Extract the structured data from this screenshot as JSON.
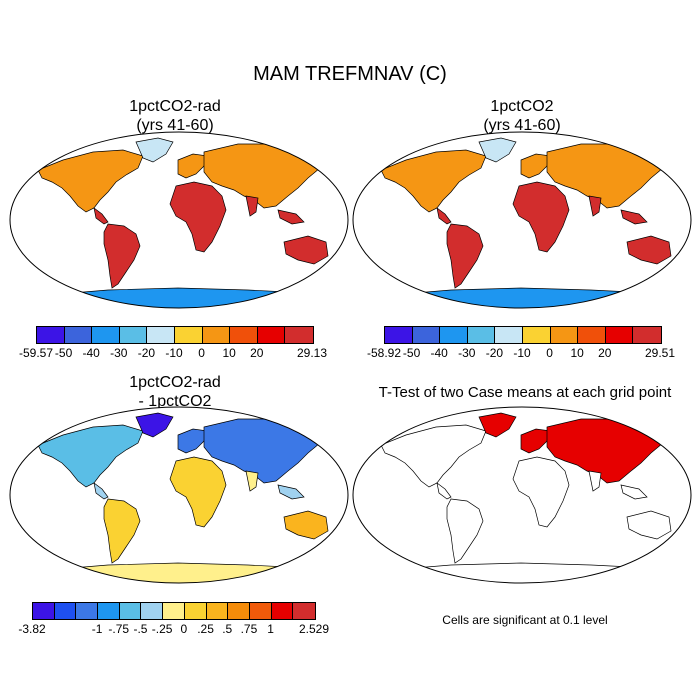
{
  "figure": {
    "title": "MAM TREFMNAV (C)"
  },
  "panels": [
    {
      "title_line1": "1pctCO2-rad",
      "title_line2": "(yrs 41-60)",
      "colorbar_labels": [
        "-59.57",
        "-50",
        "-40",
        "-30",
        "-20",
        "-10",
        "0",
        "10",
        "20",
        "29.13"
      ]
    },
    {
      "title_line1": "1pctCO2",
      "title_line2": "(yrs 41-60)",
      "colorbar_labels": [
        "-58.92",
        "-50",
        "-40",
        "-30",
        "-20",
        "-10",
        "0",
        "10",
        "20",
        "29.51"
      ]
    },
    {
      "title_line1": "1pctCO2-rad",
      "title_line2": "- 1pctCO2",
      "colorbar_labels": [
        "-3.82",
        "-1",
        "-.75",
        "-.5",
        "-.25",
        "0",
        ".25",
        ".5",
        ".75",
        "1",
        "2.529"
      ]
    },
    {
      "title_line1": "T-Test of two Case means at each grid point",
      "note": "Cells are significant at 0.1 level"
    }
  ],
  "colors": {
    "abs_scale": [
      "#3c14e6",
      "#3c64dc",
      "#1e96f0",
      "#5abee6",
      "#c8e6f5",
      "#fad232",
      "#f59614",
      "#f0500a",
      "#e60000",
      "#d22d2d"
    ],
    "diff_scale": [
      "#3c14e6",
      "#1e50f0",
      "#3c78e6",
      "#1e96f0",
      "#5abee6",
      "#a0d2f0",
      "#fff08c",
      "#fad232",
      "#fab41e",
      "#f58c0a",
      "#f05a0a",
      "#e60000",
      "#d22d2d"
    ],
    "significance": "#e60000",
    "ocean": "#ffffff",
    "coastline": "#000000"
  }
}
